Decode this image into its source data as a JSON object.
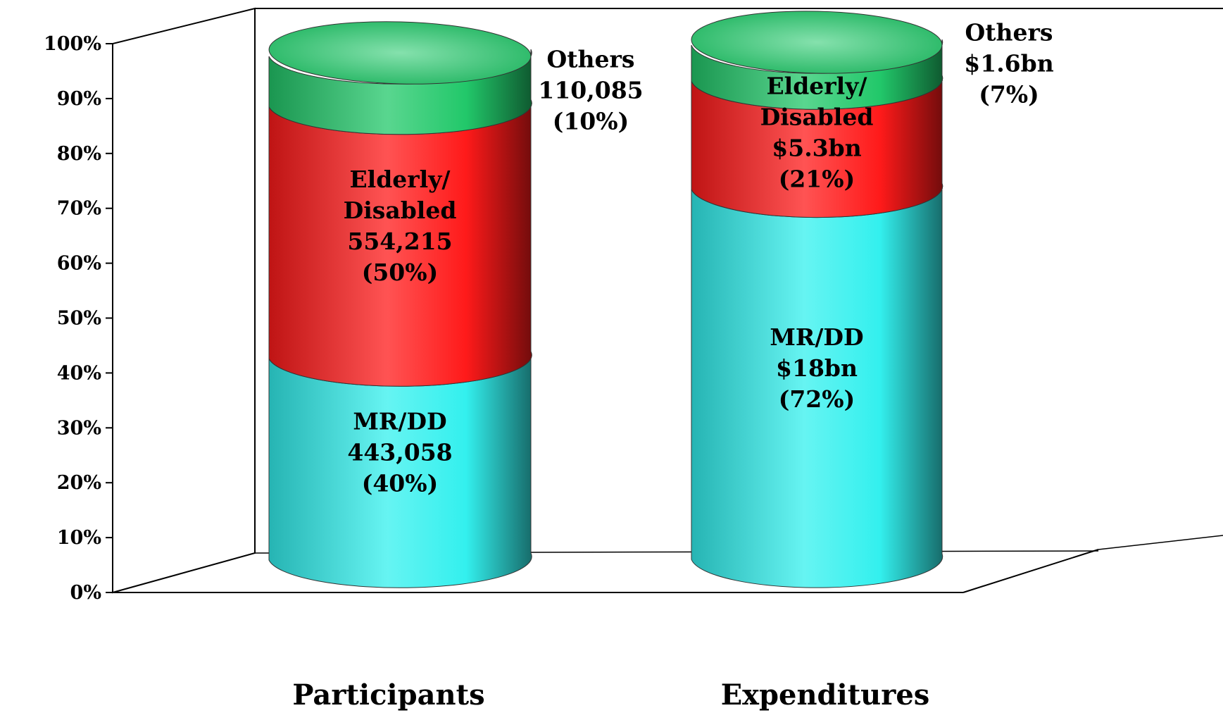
{
  "chart_data": {
    "type": "bar",
    "stacked": true,
    "percent_stacked": true,
    "categories": [
      "Participants",
      "Expenditures"
    ],
    "series": [
      {
        "name": "MR/DD",
        "values": [
          40,
          72
        ],
        "color": "#33f0ee"
      },
      {
        "name": "Elderly/ Disabled",
        "values": [
          50,
          21
        ],
        "color": "#ff1a1a"
      },
      {
        "name": "Others",
        "values": [
          10,
          7
        ],
        "color": "#22c86a"
      }
    ],
    "y_ticks": [
      "0%",
      "10%",
      "20%",
      "30%",
      "40%",
      "50%",
      "60%",
      "70%",
      "80%",
      "90%",
      "100%"
    ],
    "ylim": [
      0,
      100
    ],
    "grid": false,
    "legend": "none",
    "data_labels": [
      [
        [
          "MR/DD",
          "443,058",
          "(40%)"
        ],
        [
          "Elderly/",
          "Disabled",
          "554,215",
          "(50%)"
        ],
        [
          "Others",
          "110,085",
          "(10%)"
        ]
      ],
      [
        [
          "MR/DD",
          "$18bn",
          "(72%)"
        ],
        [
          "Elderly/",
          "Disabled",
          "$5.3bn",
          "(21%)"
        ],
        [
          "Others",
          "$1.6bn",
          "(7%)"
        ]
      ]
    ]
  }
}
